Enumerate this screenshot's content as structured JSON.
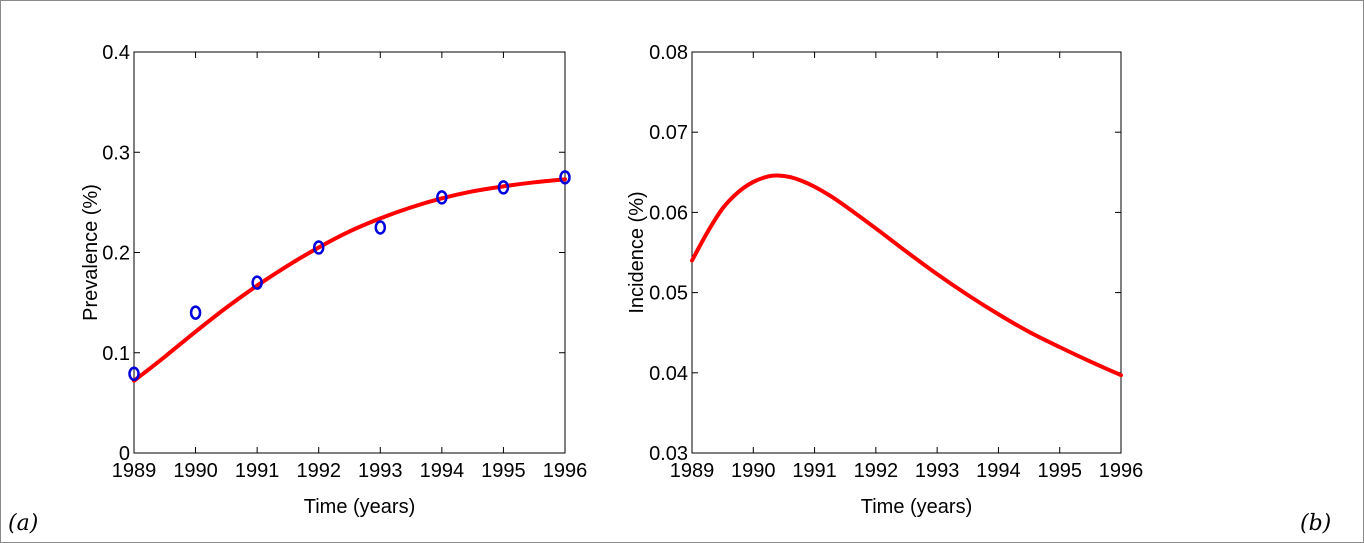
{
  "chart_data": [
    {
      "type": "line",
      "panel_label": "(a)",
      "xlabel": "Time (years)",
      "ylabel": "Prevalence (%)",
      "xlim": [
        1989,
        1996
      ],
      "ylim": [
        0,
        0.4
      ],
      "x_ticks": [
        1989,
        1990,
        1991,
        1992,
        1993,
        1994,
        1995,
        1996
      ],
      "y_ticks": [
        0,
        0.1,
        0.2,
        0.3,
        0.4
      ],
      "y_tick_labels": [
        "0",
        "0.1",
        "0.2",
        "0.3",
        "0.4"
      ],
      "grid": false,
      "colors": {
        "line": "#ff0000",
        "markers": "#0000dd"
      },
      "series": [
        {
          "style": "line",
          "x": [
            1989,
            1989.5,
            1990,
            1990.5,
            1991,
            1991.5,
            1992,
            1992.5,
            1993,
            1993.5,
            1994,
            1994.5,
            1995,
            1995.5,
            1996
          ],
          "y": [
            0.072,
            0.096,
            0.121,
            0.145,
            0.167,
            0.187,
            0.205,
            0.221,
            0.234,
            0.245,
            0.254,
            0.261,
            0.266,
            0.27,
            0.273
          ]
        },
        {
          "style": "markers",
          "x": [
            1989,
            1990,
            1991,
            1992,
            1993,
            1994,
            1995,
            1996
          ],
          "y": [
            0.079,
            0.14,
            0.17,
            0.205,
            0.225,
            0.255,
            0.265,
            0.275
          ]
        }
      ]
    },
    {
      "type": "line",
      "panel_label": "(b)",
      "xlabel": "Time (years)",
      "ylabel": "Incidence (%)",
      "xlim": [
        1989,
        1996
      ],
      "ylim": [
        0.03,
        0.08
      ],
      "x_ticks": [
        1989,
        1990,
        1991,
        1992,
        1993,
        1994,
        1995,
        1996
      ],
      "y_ticks": [
        0.03,
        0.04,
        0.05,
        0.06,
        0.07,
        0.08
      ],
      "y_tick_labels": [
        "0.03",
        "0.04",
        "0.05",
        "0.06",
        "0.07",
        "0.08"
      ],
      "grid": false,
      "colors": {
        "line": "#ff0000"
      },
      "series": [
        {
          "style": "line",
          "x": [
            1989,
            1989.25,
            1989.5,
            1989.75,
            1990,
            1990.25,
            1990.4,
            1990.6,
            1990.8,
            1991,
            1991.25,
            1991.5,
            1992,
            1992.5,
            1993,
            1993.5,
            1994,
            1994.5,
            1995,
            1995.5,
            1996
          ],
          "y": [
            0.054,
            0.0575,
            0.0605,
            0.0625,
            0.0638,
            0.0645,
            0.0646,
            0.0644,
            0.0639,
            0.0632,
            0.0621,
            0.0608,
            0.058,
            0.0551,
            0.0523,
            0.0497,
            0.0473,
            0.0451,
            0.0432,
            0.0414,
            0.0397
          ]
        }
      ]
    }
  ]
}
